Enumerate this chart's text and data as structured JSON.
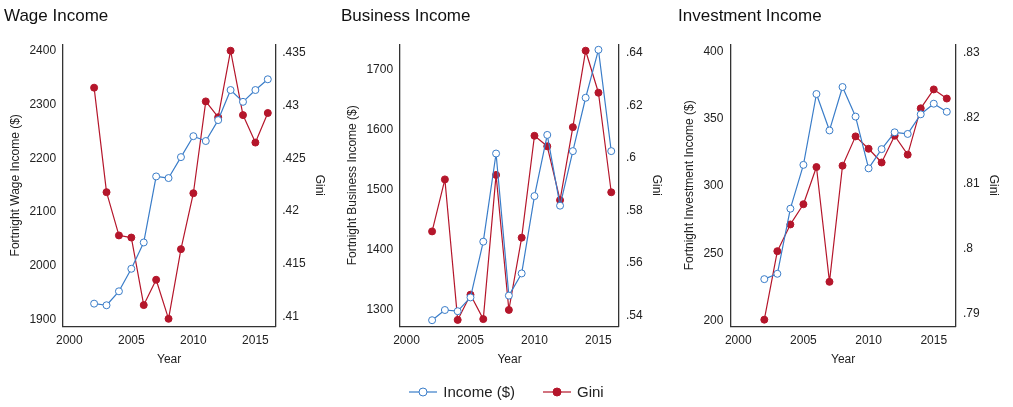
{
  "chart_data": [
    {
      "type": "line",
      "title": "Wage Income",
      "xlabel": "Year",
      "ylabel": "Fortnight Wage Income ($)",
      "y2label": "Gini",
      "x": [
        2002,
        2003,
        2004,
        2005,
        2006,
        2007,
        2008,
        2009,
        2010,
        2011,
        2012,
        2013,
        2014,
        2015,
        2016
      ],
      "xlim": [
        1999.5,
        2016.6
      ],
      "xticks": [
        2000,
        2005,
        2010,
        2015
      ],
      "ylim": [
        1887,
        2412
      ],
      "yticks": [
        1900,
        2000,
        2100,
        2200,
        2300,
        2400
      ],
      "y2lim": [
        0.4091,
        0.4358
      ],
      "y2ticks": [
        {
          "value": 0.41,
          "label": ".41"
        },
        {
          "value": 0.415,
          "label": ".415"
        },
        {
          "value": 0.42,
          "label": ".42"
        },
        {
          "value": 0.425,
          "label": ".425"
        },
        {
          "value": 0.43,
          "label": ".43"
        },
        {
          "value": 0.435,
          "label": ".435"
        }
      ],
      "grid": false,
      "legend": "bottom",
      "marker": "circle",
      "line_style": "solid",
      "series": [
        {
          "name": "Income ($)",
          "color": "#3a7dc9",
          "values": [
            1929,
            1926,
            1952,
            1994,
            2043,
            2166,
            2163,
            2202,
            2241,
            2232,
            2271,
            2327,
            2305,
            2327,
            2347
          ]
        },
        {
          "name": "Gini",
          "color": "#b5162b",
          "axis": "y2",
          "values": [
            0.4317,
            0.4218,
            0.4177,
            0.4175,
            0.4111,
            0.4135,
            0.4098,
            0.4164,
            0.4217,
            0.4304,
            0.4289,
            0.4352,
            0.4291,
            0.4265,
            0.4293
          ]
        }
      ]
    },
    {
      "type": "line",
      "title": "Business Income",
      "xlabel": "Year",
      "ylabel": "Fortnight Business Income ($)",
      "y2label": "Gini",
      "x": [
        2002,
        2003,
        2004,
        2005,
        2006,
        2007,
        2008,
        2009,
        2010,
        2011,
        2012,
        2013,
        2014,
        2015,
        2016
      ],
      "xlim": [
        1999.5,
        2016.6
      ],
      "xticks": [
        2000,
        2005,
        2010,
        2015
      ],
      "ylim": [
        1273,
        1743
      ],
      "yticks": [
        1300,
        1400,
        1500,
        1600,
        1700
      ],
      "y2lim": [
        0.536,
        0.6433
      ],
      "y2ticks": [
        {
          "value": 0.54,
          "label": ".54"
        },
        {
          "value": 0.56,
          "label": ".56"
        },
        {
          "value": 0.58,
          "label": ".58"
        },
        {
          "value": 0.6,
          "label": ".6"
        },
        {
          "value": 0.62,
          "label": ".62"
        },
        {
          "value": 0.64,
          "label": ".64"
        }
      ],
      "grid": false,
      "marker": "circle",
      "line_style": "solid",
      "series": [
        {
          "color": "#3a7dc9",
          "values": [
            1283,
            1300,
            1298,
            1321,
            1414,
            1561,
            1324,
            1361,
            1490,
            1592,
            1474,
            1565,
            1654,
            1734,
            1565
          ]
        },
        {
          "color": "#b5162b",
          "axis": "y2",
          "values": [
            0.5721,
            0.5919,
            0.5384,
            0.548,
            0.5387,
            0.5936,
            0.5422,
            0.5697,
            0.6085,
            0.6045,
            0.584,
            0.6118,
            0.6409,
            0.6249,
            0.587
          ]
        }
      ]
    },
    {
      "type": "line",
      "title": "Investment Income",
      "xlabel": "Year",
      "ylabel": "Fortnight Investment Income ($)",
      "y2label": "Gini",
      "x": [
        2002,
        2003,
        2004,
        2005,
        2006,
        2007,
        2008,
        2009,
        2010,
        2011,
        2012,
        2013,
        2014,
        2015,
        2016
      ],
      "xlim": [
        1999.4,
        2016.7
      ],
      "xticks": [
        2000,
        2005,
        2010,
        2015
      ],
      "ylim": [
        195.7,
        405.3
      ],
      "yticks": [
        200,
        250,
        300,
        350,
        400
      ],
      "y2lim": [
        0.7881,
        0.8313
      ],
      "y2ticks": [
        {
          "value": 0.79,
          "label": ".79"
        },
        {
          "value": 0.8,
          "label": ".8"
        },
        {
          "value": 0.81,
          "label": ".81"
        },
        {
          "value": 0.82,
          "label": ".82"
        },
        {
          "value": 0.83,
          "label": ".83"
        }
      ],
      "grid": false,
      "marker": "circle",
      "line_style": "solid",
      "series": [
        {
          "color": "#3a7dc9",
          "values": [
            230.7,
            234.7,
            283.1,
            315.7,
            368.4,
            341.3,
            373.6,
            351.6,
            313.1,
            327.4,
            339.9,
            338.7,
            353.3,
            361.2,
            355.2
          ]
        },
        {
          "color": "#b5162b",
          "axis": "y2",
          "values": [
            0.7891,
            0.7996,
            0.8037,
            0.8068,
            0.8125,
            0.7949,
            0.8127,
            0.8172,
            0.8153,
            0.8132,
            0.8173,
            0.8144,
            0.8215,
            0.8244,
            0.823
          ]
        }
      ]
    }
  ]
}
